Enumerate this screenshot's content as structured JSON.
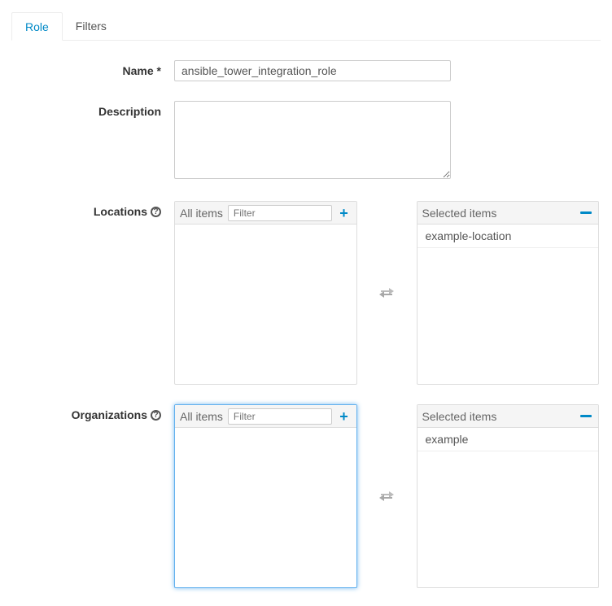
{
  "tabs": {
    "role": "Role",
    "filters": "Filters",
    "active": "role"
  },
  "fields": {
    "name": {
      "label": "Name *",
      "value": "ansible_tower_integration_role"
    },
    "description": {
      "label": "Description",
      "value": ""
    }
  },
  "locations": {
    "label": "Locations",
    "all_title": "All items",
    "selected_title": "Selected items",
    "filter_placeholder": "Filter",
    "selected": [
      "example-location"
    ]
  },
  "organizations": {
    "label": "Organizations",
    "all_title": "All items",
    "selected_title": "Selected items",
    "filter_placeholder": "Filter",
    "selected": [
      "example"
    ]
  },
  "colors": {
    "accent": "#0089c7",
    "border": "#ddd",
    "text": "#333",
    "muted": "#666",
    "focus_glow": "rgba(82,168,236,0.8)"
  }
}
